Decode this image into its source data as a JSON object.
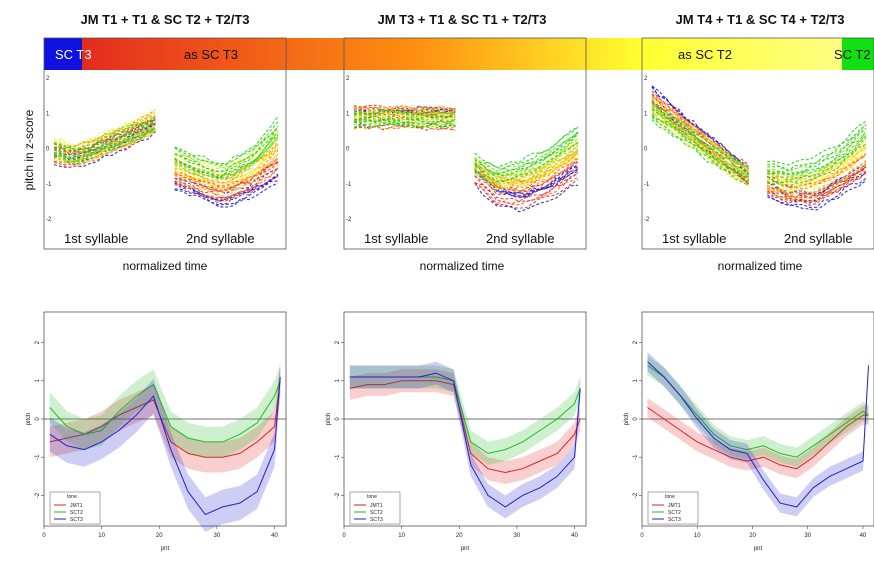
{
  "figure": {
    "ylabel_top": "pitch in z-score",
    "ylabel_bottom": "pitch",
    "xlabel_top": "normalized time",
    "xlabel_bottom": "pnt",
    "syllable_labels": [
      "1st syllable",
      "2nd syllable"
    ],
    "color_bar": [
      {
        "text": "SC T3",
        "color": "#1010e0"
      },
      {
        "text": "as SC T3",
        "color": "#f04030"
      },
      {
        "text": "as SC T2",
        "color": "#ffff40"
      },
      {
        "text": "SC T2",
        "color": "#10e010"
      }
    ],
    "legend": {
      "title": "tone",
      "entries": [
        "JMT1",
        "SCT2",
        "SCT3"
      ]
    },
    "legend_colors": [
      "#dd2222",
      "#22bb22",
      "#2222cc"
    ]
  },
  "chart_data": [
    {
      "type": "line",
      "panel": "top-left",
      "title": "JM T1 + T1 & SC T2 + T2/T3",
      "xlabel": "normalized time",
      "ylabel": "pitch in z-score",
      "ylim": [
        -2,
        2
      ],
      "yticks": [
        -2,
        -1,
        0,
        1,
        2
      ],
      "annotations": [
        "1st syllable",
        "2nd syllable"
      ],
      "series": [
        {
          "name": "SC T3",
          "x": [
            1,
            5,
            10,
            15,
            20,
            21,
            25,
            30,
            35,
            40
          ],
          "values": [
            -0.2,
            -0.3,
            0.0,
            0.3,
            0.7,
            -1.0,
            -1.2,
            -1.5,
            -1.2,
            -0.8
          ]
        },
        {
          "name": "SC T2",
          "x": [
            1,
            5,
            10,
            15,
            20,
            21,
            25,
            30,
            35,
            40
          ],
          "values": [
            0.1,
            -0.1,
            0.2,
            0.5,
            0.8,
            0.0,
            -0.3,
            -0.5,
            -0.1,
            0.8
          ]
        }
      ]
    },
    {
      "type": "line",
      "panel": "top-middle",
      "title": "JM T3 + T1 & SC T1 + T2/T3",
      "xlabel": "normalized time",
      "ylabel": "pitch in z-score",
      "ylim": [
        -2,
        2
      ],
      "yticks": [
        -2,
        -1,
        0,
        1,
        2
      ],
      "annotations": [
        "1st syllable",
        "2nd syllable"
      ],
      "series": [
        {
          "name": "SC T3",
          "x": [
            1,
            5,
            10,
            15,
            20,
            21,
            25,
            30,
            35,
            40
          ],
          "values": [
            0.9,
            0.9,
            0.9,
            0.9,
            0.9,
            -0.8,
            -1.4,
            -1.6,
            -1.3,
            -0.8
          ]
        },
        {
          "name": "SC T2",
          "x": [
            1,
            5,
            10,
            15,
            20,
            21,
            25,
            30,
            35,
            40
          ],
          "values": [
            0.8,
            0.8,
            0.8,
            0.8,
            0.8,
            -0.4,
            -0.7,
            -0.5,
            -0.1,
            0.5
          ]
        }
      ]
    },
    {
      "type": "line",
      "panel": "top-right",
      "title": "JM T4 + T1 & SC T4 + T2/T3",
      "xlabel": "normalized time",
      "ylabel": "pitch in z-score",
      "ylim": [
        -2,
        2
      ],
      "yticks": [
        -2,
        -1,
        0,
        1,
        2
      ],
      "annotations": [
        "1st syllable",
        "2nd syllable"
      ],
      "series": [
        {
          "name": "SC T3",
          "x": [
            1,
            5,
            10,
            15,
            20,
            21,
            25,
            30,
            35,
            40
          ],
          "values": [
            1.5,
            1.0,
            0.4,
            -0.2,
            -0.8,
            -1.2,
            -1.5,
            -1.6,
            -1.2,
            -0.8
          ]
        },
        {
          "name": "SC T2",
          "x": [
            1,
            5,
            10,
            15,
            20,
            21,
            25,
            30,
            35,
            40
          ],
          "values": [
            1.0,
            0.6,
            0.1,
            -0.4,
            -0.8,
            -0.6,
            -0.7,
            -0.5,
            -0.1,
            0.6
          ]
        }
      ]
    },
    {
      "type": "line",
      "panel": "bottom-left",
      "xlabel": "pnt",
      "ylabel": "pitch",
      "xlim": [
        0,
        42
      ],
      "ylim": [
        -2.8,
        2.8
      ],
      "xticks": [
        0,
        10,
        20,
        30,
        40
      ],
      "yticks": [
        -2,
        -1,
        0,
        1,
        2
      ],
      "reference_line_y": 0,
      "legend": {
        "title": "tone",
        "entries": [
          "JMT1",
          "SCT2",
          "SCT3"
        ],
        "placement": "bottom-left"
      },
      "series": [
        {
          "name": "JMT1",
          "x": [
            1,
            4,
            7,
            10,
            13,
            16,
            19,
            22,
            25,
            28,
            31,
            34,
            37,
            40,
            41
          ],
          "values": [
            -0.6,
            -0.5,
            -0.4,
            -0.2,
            0.1,
            0.3,
            0.5,
            -0.6,
            -0.9,
            -1.0,
            -1.0,
            -0.9,
            -0.6,
            -0.2,
            1.0
          ],
          "band": 0.4
        },
        {
          "name": "SCT2",
          "x": [
            1,
            4,
            7,
            10,
            13,
            16,
            19,
            22,
            25,
            28,
            31,
            34,
            37,
            40,
            41
          ],
          "values": [
            0.3,
            -0.2,
            -0.4,
            -0.3,
            0.2,
            0.6,
            0.9,
            -0.2,
            -0.5,
            -0.6,
            -0.6,
            -0.4,
            -0.1,
            0.6,
            1.0
          ],
          "band": 0.4
        },
        {
          "name": "SCT3",
          "x": [
            1,
            4,
            7,
            10,
            13,
            16,
            19,
            22,
            25,
            28,
            31,
            34,
            37,
            40,
            41
          ],
          "values": [
            -0.4,
            -0.7,
            -0.8,
            -0.6,
            -0.3,
            0.1,
            0.6,
            -0.8,
            -1.9,
            -2.5,
            -2.3,
            -2.2,
            -1.9,
            -0.8,
            1.1
          ],
          "band": 0.45
        }
      ]
    },
    {
      "type": "line",
      "panel": "bottom-middle",
      "xlabel": "pnt",
      "ylabel": "pitch",
      "xlim": [
        0,
        42
      ],
      "ylim": [
        -2.8,
        2.8
      ],
      "xticks": [
        0,
        10,
        20,
        30,
        40
      ],
      "yticks": [
        -2,
        -1,
        0,
        1,
        2
      ],
      "reference_line_y": 0,
      "legend": {
        "title": "tone",
        "entries": [
          "JMT1",
          "SCT2",
          "SCT3"
        ],
        "placement": "bottom-left"
      },
      "series": [
        {
          "name": "JMT1",
          "x": [
            1,
            4,
            7,
            10,
            13,
            16,
            19,
            22,
            25,
            28,
            31,
            34,
            37,
            40,
            41
          ],
          "values": [
            0.8,
            0.9,
            0.9,
            1.0,
            1.0,
            1.0,
            0.9,
            -0.9,
            -1.3,
            -1.4,
            -1.3,
            -1.1,
            -0.9,
            -0.4,
            0.0
          ],
          "band": 0.3
        },
        {
          "name": "SCT2",
          "x": [
            1,
            4,
            7,
            10,
            13,
            16,
            19,
            22,
            25,
            28,
            31,
            34,
            37,
            40,
            41
          ],
          "values": [
            1.1,
            1.1,
            1.1,
            1.1,
            1.1,
            1.1,
            1.0,
            -0.6,
            -0.9,
            -0.8,
            -0.6,
            -0.3,
            0.0,
            0.4,
            0.8
          ],
          "band": 0.3
        },
        {
          "name": "SCT3",
          "x": [
            1,
            4,
            7,
            10,
            13,
            16,
            19,
            22,
            25,
            28,
            31,
            34,
            37,
            40,
            41
          ],
          "values": [
            1.1,
            1.1,
            1.1,
            1.1,
            1.1,
            1.2,
            1.0,
            -1.2,
            -2.0,
            -2.3,
            -2.0,
            -1.8,
            -1.5,
            -1.0,
            0.8
          ],
          "band": 0.3
        }
      ]
    },
    {
      "type": "line",
      "panel": "bottom-right",
      "xlabel": "pnt",
      "ylabel": "pitch",
      "xlim": [
        0,
        42
      ],
      "ylim": [
        -2.8,
        2.8
      ],
      "xticks": [
        0,
        10,
        20,
        30,
        40
      ],
      "yticks": [
        -2,
        -1,
        0,
        1,
        2
      ],
      "reference_line_y": 0,
      "legend": {
        "title": "tone",
        "entries": [
          "JMT1",
          "SCT2",
          "SCT3"
        ],
        "placement": "bottom-left"
      },
      "series": [
        {
          "name": "JMT1",
          "x": [
            1,
            4,
            7,
            10,
            13,
            16,
            19,
            22,
            25,
            28,
            31,
            34,
            37,
            40,
            41
          ],
          "values": [
            0.3,
            0.0,
            -0.3,
            -0.6,
            -0.8,
            -1.0,
            -1.1,
            -1.0,
            -1.2,
            -1.3,
            -1.0,
            -0.6,
            -0.2,
            0.1,
            0.1
          ],
          "band": 0.25
        },
        {
          "name": "SCT2",
          "x": [
            1,
            4,
            7,
            10,
            13,
            16,
            19,
            22,
            25,
            28,
            31,
            34,
            37,
            40,
            41
          ],
          "values": [
            1.4,
            1.1,
            0.6,
            0.1,
            -0.4,
            -0.7,
            -0.8,
            -0.7,
            -0.9,
            -1.0,
            -0.7,
            -0.4,
            -0.1,
            0.2,
            0.1
          ],
          "band": 0.25
        },
        {
          "name": "SCT3",
          "x": [
            1,
            4,
            7,
            10,
            13,
            16,
            19,
            22,
            25,
            28,
            31,
            34,
            37,
            40,
            41
          ],
          "values": [
            1.5,
            1.1,
            0.6,
            0.0,
            -0.5,
            -0.8,
            -0.9,
            -1.6,
            -2.2,
            -2.3,
            -1.8,
            -1.5,
            -1.3,
            -1.1,
            1.4
          ],
          "band": 0.25
        }
      ]
    }
  ]
}
